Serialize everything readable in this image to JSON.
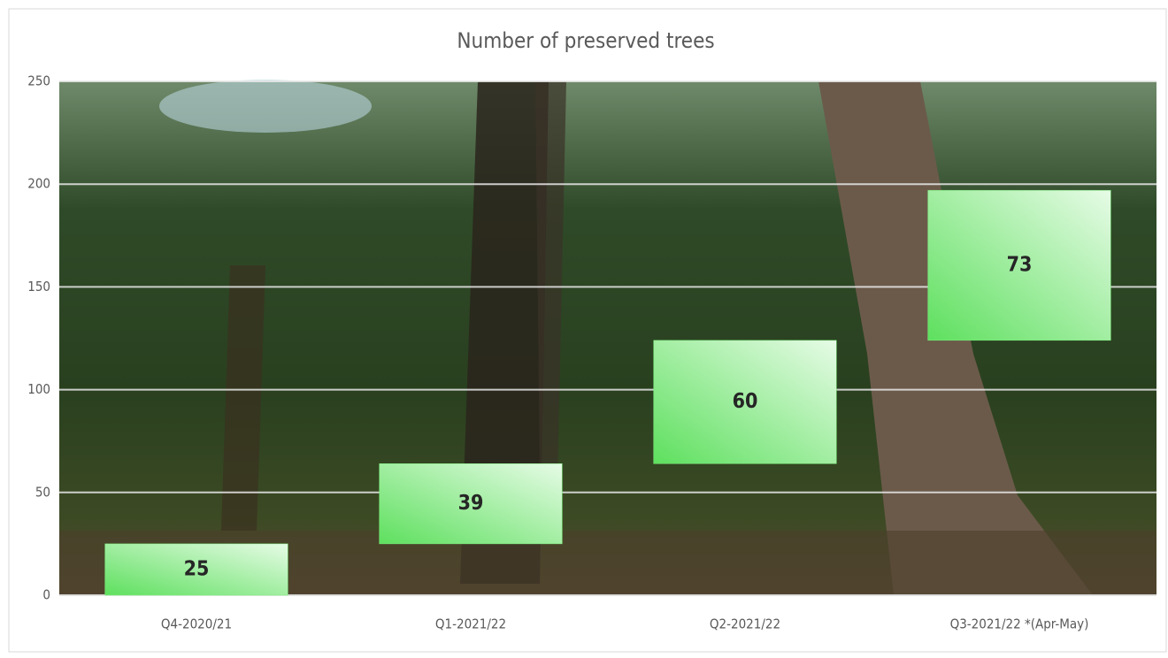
{
  "chart_data": {
    "type": "waterfall",
    "title": "Number of preserved trees",
    "categories": [
      "Q4-2020/21",
      "Q1-2021/22",
      "Q2-2021/22",
      "Q3-2021/22 *(Apr-May)"
    ],
    "values": [
      25,
      39,
      60,
      73
    ],
    "color": "#7cf07c",
    "ylim": [
      0,
      250
    ],
    "yticks": [
      0,
      50,
      100,
      150,
      200,
      250
    ],
    "grid": true
  }
}
